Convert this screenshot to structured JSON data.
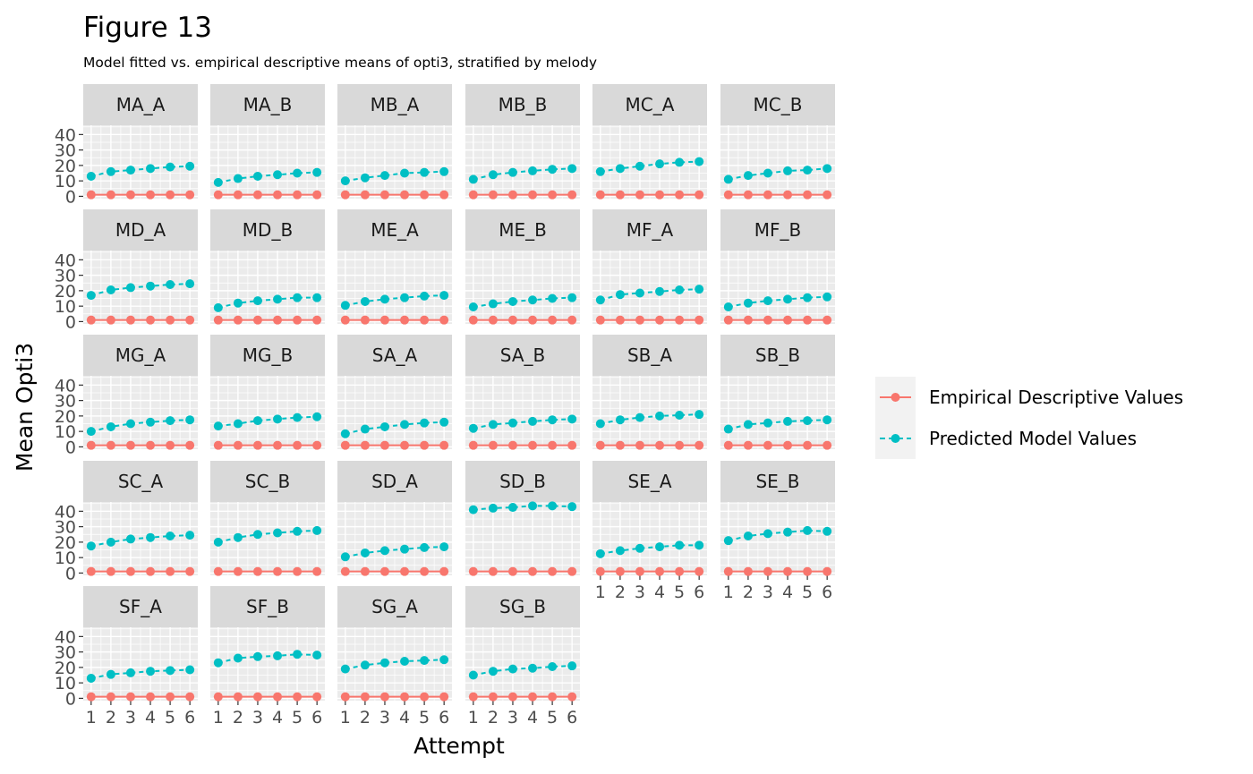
{
  "chart_data": {
    "type": "line",
    "title": "Figure 13",
    "subtitle": "Model fitted vs. empirical descriptive means of opti3, stratified by melody",
    "xlabel": "Attempt",
    "ylabel": "Mean Opti3",
    "x": [
      1,
      2,
      3,
      4,
      5,
      6
    ],
    "x_ticks": [
      "1",
      "2",
      "3",
      "4",
      "5",
      "6"
    ],
    "y_ticks": [
      "0",
      "10",
      "20",
      "30",
      "40"
    ],
    "ylim": [
      -1.5,
      46
    ],
    "legend": {
      "placement": "right",
      "entries": [
        {
          "label": "Empirical Descriptive Values",
          "color": "#F8766D",
          "linestyle": "solid"
        },
        {
          "label": "Predicted Model Values",
          "color": "#00BFC4",
          "linestyle": "dashed"
        }
      ]
    },
    "panels": [
      {
        "name": "MA_A",
        "predicted": [
          13,
          16,
          17,
          18,
          19,
          19.5
        ],
        "empirical": [
          1,
          1,
          1,
          1,
          1,
          1
        ]
      },
      {
        "name": "MA_B",
        "predicted": [
          9,
          11.5,
          13,
          14,
          15,
          15.5
        ],
        "empirical": [
          1,
          1,
          1,
          1,
          1,
          1
        ]
      },
      {
        "name": "MB_A",
        "predicted": [
          10,
          12,
          13.5,
          15,
          15.5,
          16
        ],
        "empirical": [
          1,
          1,
          1,
          1,
          1,
          1
        ]
      },
      {
        "name": "MB_B",
        "predicted": [
          11,
          14,
          15.5,
          16.5,
          17.5,
          18
        ],
        "empirical": [
          1,
          1,
          1,
          1,
          1,
          1
        ]
      },
      {
        "name": "MC_A",
        "predicted": [
          16,
          18,
          19.5,
          21,
          22,
          22.5
        ],
        "empirical": [
          1,
          1,
          1,
          1,
          1,
          1
        ]
      },
      {
        "name": "MC_B",
        "predicted": [
          11,
          13.5,
          15,
          16.5,
          17,
          18
        ],
        "empirical": [
          1,
          1,
          1,
          1,
          1,
          1
        ]
      },
      {
        "name": "MD_A",
        "predicted": [
          17,
          20.5,
          22,
          23,
          24,
          24.5
        ],
        "empirical": [
          1,
          1,
          1,
          1,
          1,
          1
        ]
      },
      {
        "name": "MD_B",
        "predicted": [
          9,
          12,
          13.5,
          14.5,
          15.5,
          15.5
        ],
        "empirical": [
          1,
          1,
          1,
          1,
          1,
          1
        ]
      },
      {
        "name": "ME_A",
        "predicted": [
          10.5,
          13,
          14.5,
          15.5,
          16.5,
          17
        ],
        "empirical": [
          1,
          1,
          1,
          1,
          1,
          1
        ]
      },
      {
        "name": "ME_B",
        "predicted": [
          9.5,
          11.5,
          13,
          14,
          15,
          15.5
        ],
        "empirical": [
          1,
          1,
          1,
          1,
          1,
          1
        ]
      },
      {
        "name": "MF_A",
        "predicted": [
          14,
          17.5,
          18.5,
          19.5,
          20.5,
          21
        ],
        "empirical": [
          1,
          1,
          1,
          1,
          1,
          1
        ]
      },
      {
        "name": "MF_B",
        "predicted": [
          9.5,
          12,
          13.5,
          14.5,
          15.5,
          16
        ],
        "empirical": [
          1,
          1,
          1,
          1,
          1,
          1
        ]
      },
      {
        "name": "MG_A",
        "predicted": [
          10,
          13,
          15,
          16,
          17,
          17.5
        ],
        "empirical": [
          1,
          1,
          1,
          1,
          1,
          1
        ]
      },
      {
        "name": "MG_B",
        "predicted": [
          13.5,
          15,
          17,
          18,
          19,
          19.5
        ],
        "empirical": [
          1,
          1,
          1,
          1,
          1,
          1
        ]
      },
      {
        "name": "SA_A",
        "predicted": [
          8.5,
          11.5,
          13,
          14.5,
          15.5,
          16
        ],
        "empirical": [
          1,
          1,
          1,
          1,
          1,
          1
        ]
      },
      {
        "name": "SA_B",
        "predicted": [
          12,
          14.5,
          15.5,
          16.5,
          17.5,
          18
        ],
        "empirical": [
          1,
          1,
          1,
          1,
          1,
          1
        ]
      },
      {
        "name": "SB_A",
        "predicted": [
          15,
          17.5,
          19,
          20,
          20.5,
          21
        ],
        "empirical": [
          1,
          1,
          1,
          1,
          1,
          1
        ]
      },
      {
        "name": "SB_B",
        "predicted": [
          11.5,
          14.5,
          15.5,
          16.5,
          17,
          17.5
        ],
        "empirical": [
          1,
          1,
          1,
          1,
          1,
          1
        ]
      },
      {
        "name": "SC_A",
        "predicted": [
          17.5,
          20,
          22,
          23,
          24,
          24.5
        ],
        "empirical": [
          1,
          1,
          1,
          1,
          1,
          1
        ]
      },
      {
        "name": "SC_B",
        "predicted": [
          20,
          23,
          25,
          26,
          27,
          27.5
        ],
        "empirical": [
          1,
          1,
          1,
          1,
          1,
          1
        ]
      },
      {
        "name": "SD_A",
        "predicted": [
          10.5,
          13,
          14.5,
          15.5,
          16.5,
          17
        ],
        "empirical": [
          1,
          1,
          1,
          1,
          1,
          1
        ]
      },
      {
        "name": "SD_B",
        "predicted": [
          41,
          42,
          42.5,
          43.5,
          43.5,
          43
        ],
        "empirical": [
          1,
          1,
          1,
          1,
          1,
          1
        ]
      },
      {
        "name": "SE_A",
        "predicted": [
          12.5,
          14.5,
          16,
          17,
          18,
          18
        ],
        "empirical": [
          1,
          1,
          1,
          1,
          1,
          1
        ]
      },
      {
        "name": "SE_B",
        "predicted": [
          21,
          24,
          25.5,
          26.5,
          27.5,
          27
        ],
        "empirical": [
          1,
          1,
          1,
          1,
          1,
          1
        ]
      },
      {
        "name": "SF_A",
        "predicted": [
          13,
          15.5,
          16.5,
          17.5,
          18,
          18.5
        ],
        "empirical": [
          1,
          1,
          1,
          1,
          1,
          1
        ]
      },
      {
        "name": "SF_B",
        "predicted": [
          23,
          26,
          27,
          27.5,
          28.5,
          28
        ],
        "empirical": [
          1,
          1,
          1,
          1,
          1,
          1
        ]
      },
      {
        "name": "SG_A",
        "predicted": [
          19,
          21.5,
          23,
          24,
          24.5,
          25
        ],
        "empirical": [
          1,
          1,
          1,
          1,
          1,
          1
        ]
      },
      {
        "name": "SG_B",
        "predicted": [
          15,
          17.5,
          19,
          19.5,
          20.5,
          21
        ],
        "empirical": [
          1,
          1,
          1,
          1,
          1,
          1
        ]
      }
    ]
  }
}
